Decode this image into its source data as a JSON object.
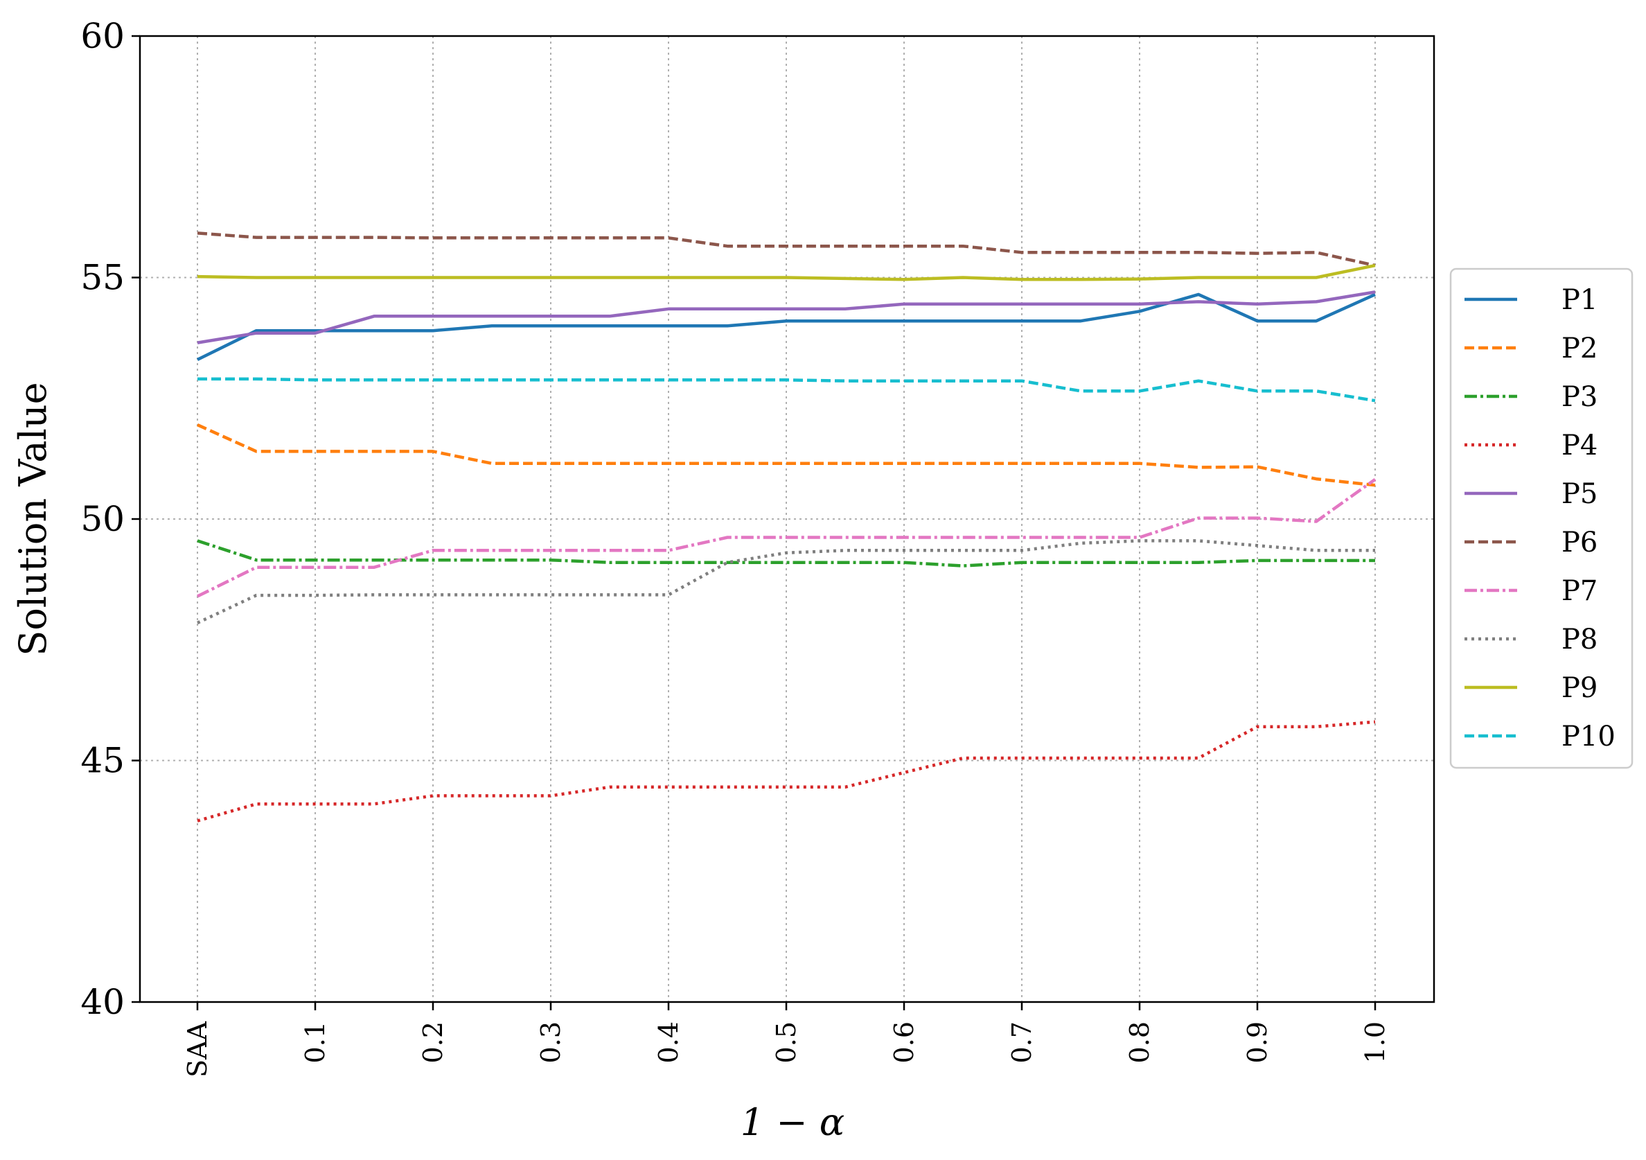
{
  "chart_data": {
    "type": "line",
    "title": "",
    "xlabel": "1 − α",
    "ylabel": "Solution Value",
    "ylim": [
      40,
      60
    ],
    "yticks": [
      40,
      45,
      50,
      55,
      60
    ],
    "x": [
      "SAA",
      0.05,
      0.1,
      0.15,
      0.2,
      0.25,
      0.3,
      0.35,
      0.4,
      0.45,
      0.5,
      0.55,
      0.6,
      0.65,
      0.7,
      0.75,
      0.8,
      0.85,
      0.9,
      0.95,
      1.0
    ],
    "xtick_labels": [
      "SAA",
      "0.1",
      "0.2",
      "0.3",
      "0.4",
      "0.5",
      "0.6",
      "0.7",
      "0.8",
      "0.9",
      "1.0"
    ],
    "xtick_indices": [
      0,
      2,
      4,
      6,
      8,
      10,
      12,
      14,
      16,
      18,
      20
    ],
    "grid": true,
    "legend_position": "right",
    "series": [
      {
        "name": "P1",
        "color": "#1f77b4",
        "dash": "solid",
        "values": [
          53.3,
          53.9,
          53.9,
          53.9,
          53.9,
          54.0,
          54.0,
          54.0,
          54.0,
          54.0,
          54.1,
          54.1,
          54.1,
          54.1,
          54.1,
          54.1,
          54.3,
          54.65,
          54.1,
          54.1,
          54.65
        ]
      },
      {
        "name": "P2",
        "color": "#ff7f0e",
        "dash": "dashed",
        "values": [
          51.95,
          51.4,
          51.4,
          51.4,
          51.4,
          51.15,
          51.15,
          51.15,
          51.15,
          51.15,
          51.15,
          51.15,
          51.15,
          51.15,
          51.15,
          51.15,
          51.15,
          51.07,
          51.08,
          50.83,
          50.7
        ]
      },
      {
        "name": "P3",
        "color": "#2ca02c",
        "dash": "dashdot",
        "values": [
          49.55,
          49.15,
          49.15,
          49.15,
          49.15,
          49.15,
          49.15,
          49.1,
          49.1,
          49.1,
          49.1,
          49.1,
          49.1,
          49.03,
          49.1,
          49.1,
          49.1,
          49.1,
          49.14,
          49.14,
          49.14
        ]
      },
      {
        "name": "P4",
        "color": "#d62728",
        "dash": "dotted",
        "values": [
          43.75,
          44.1,
          44.1,
          44.1,
          44.27,
          44.27,
          44.27,
          44.45,
          44.45,
          44.45,
          44.45,
          44.45,
          44.75,
          45.05,
          45.05,
          45.05,
          45.05,
          45.05,
          45.7,
          45.7,
          45.8
        ]
      },
      {
        "name": "P5",
        "color": "#9467bd",
        "dash": "solid",
        "values": [
          53.65,
          53.85,
          53.85,
          54.2,
          54.2,
          54.2,
          54.2,
          54.2,
          54.35,
          54.35,
          54.35,
          54.35,
          54.45,
          54.45,
          54.45,
          54.45,
          54.45,
          54.5,
          54.45,
          54.5,
          54.7
        ]
      },
      {
        "name": "P6",
        "color": "#8c564b",
        "dash": "dashed",
        "values": [
          55.92,
          55.83,
          55.83,
          55.83,
          55.82,
          55.82,
          55.82,
          55.82,
          55.82,
          55.65,
          55.65,
          55.65,
          55.65,
          55.65,
          55.52,
          55.52,
          55.52,
          55.52,
          55.5,
          55.52,
          55.25
        ]
      },
      {
        "name": "P7",
        "color": "#e377c2",
        "dash": "dashdot",
        "values": [
          48.4,
          49.0,
          49.0,
          49.0,
          49.35,
          49.35,
          49.35,
          49.35,
          49.35,
          49.62,
          49.62,
          49.62,
          49.62,
          49.62,
          49.62,
          49.62,
          49.62,
          50.02,
          50.02,
          49.95,
          50.82
        ]
      },
      {
        "name": "P8",
        "color": "#7f7f7f",
        "dash": "dotted",
        "values": [
          47.85,
          48.42,
          48.42,
          48.43,
          48.43,
          48.43,
          48.43,
          48.43,
          48.43,
          49.1,
          49.3,
          49.35,
          49.35,
          49.35,
          49.35,
          49.5,
          49.55,
          49.55,
          49.45,
          49.35,
          49.35
        ]
      },
      {
        "name": "P9",
        "color": "#bcbd22",
        "dash": "solid",
        "values": [
          55.02,
          55.0,
          55.0,
          55.0,
          55.0,
          55.0,
          55.0,
          55.0,
          55.0,
          55.0,
          55.0,
          54.98,
          54.96,
          55.0,
          54.96,
          54.96,
          54.97,
          55.0,
          55.0,
          55.0,
          55.25
        ]
      },
      {
        "name": "P10",
        "color": "#17becf",
        "dash": "dashed",
        "values": [
          52.9,
          52.9,
          52.88,
          52.88,
          52.88,
          52.88,
          52.88,
          52.88,
          52.88,
          52.88,
          52.88,
          52.86,
          52.86,
          52.86,
          52.86,
          52.65,
          52.65,
          52.86,
          52.65,
          52.65,
          52.45
        ]
      }
    ]
  }
}
